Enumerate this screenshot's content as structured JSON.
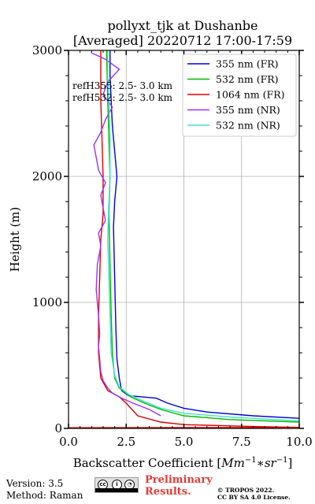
{
  "chart_data": {
    "type": "line",
    "title_lines": [
      "pollyxt_tjk at Dushanbe",
      "[Averaged] 20220712 17:00-17:59"
    ],
    "xlabel_prefix": "Backscatter Coefficient [",
    "xlabel_math": "Mm",
    "xlabel_sup1": "−1",
    "xlabel_mid": "∗sr",
    "xlabel_sup2": "−1",
    "xlabel_suffix": "]",
    "ylabel": "Height (m)",
    "xlim": [
      0,
      10
    ],
    "ylim": [
      0,
      3000
    ],
    "xticks": [
      0,
      2.5,
      5,
      7.5,
      10
    ],
    "xtick_labels": [
      "0.0",
      "2.5",
      "5.0",
      "7.5",
      "10.0"
    ],
    "yticks": [
      0,
      1000,
      2000,
      3000
    ],
    "ytick_labels": [
      "0",
      "1000",
      "2000",
      "3000"
    ],
    "grid": true,
    "legend_position": "top-right",
    "annotations": [
      "refH355:  2.5- 3.0 km",
      "refH532:  2.5- 3.0 km"
    ],
    "series": [
      {
        "name": "355 nm (FR)",
        "color": "#0000dd",
        "points": [
          [
            10,
            80
          ],
          [
            8,
            100
          ],
          [
            6,
            130
          ],
          [
            5,
            160
          ],
          [
            4.3,
            200
          ],
          [
            3.8,
            240
          ],
          [
            2.6,
            260
          ],
          [
            2.3,
            300
          ],
          [
            2.2,
            400
          ],
          [
            2.1,
            550
          ],
          [
            2.05,
            800
          ],
          [
            2.0,
            1200
          ],
          [
            1.95,
            1600
          ],
          [
            2.0,
            1800
          ],
          [
            2.1,
            2000
          ],
          [
            2.0,
            2200
          ],
          [
            1.9,
            2400
          ],
          [
            1.85,
            2600
          ],
          [
            1.8,
            2800
          ],
          [
            1.8,
            3000
          ]
        ]
      },
      {
        "name": "532 nm (FR)",
        "color": "#00bb00",
        "points": [
          [
            10,
            50
          ],
          [
            7,
            70
          ],
          [
            5,
            100
          ],
          [
            4,
            150
          ],
          [
            3.3,
            200
          ],
          [
            2.7,
            250
          ],
          [
            2.2,
            320
          ],
          [
            2.0,
            400
          ],
          [
            1.9,
            600
          ],
          [
            1.85,
            900
          ],
          [
            1.8,
            1300
          ],
          [
            1.75,
            1700
          ],
          [
            1.8,
            2000
          ],
          [
            1.75,
            2300
          ],
          [
            1.7,
            2600
          ],
          [
            1.65,
            3000
          ]
        ]
      },
      {
        "name": "1064 nm (FR)",
        "color": "#dd0000",
        "points": [
          [
            0,
            5
          ],
          [
            10,
            8
          ],
          [
            8,
            15
          ],
          [
            5,
            30
          ],
          [
            4,
            50
          ],
          [
            3,
            100
          ],
          [
            2.5,
            200
          ],
          [
            2.2,
            250
          ],
          [
            1.7,
            300
          ],
          [
            1.4,
            400
          ],
          [
            1.3,
            600
          ],
          [
            1.3,
            900
          ],
          [
            1.35,
            1200
          ],
          [
            1.4,
            1500
          ],
          [
            1.5,
            1700
          ],
          [
            1.5,
            2000
          ],
          [
            1.45,
            2300
          ],
          [
            1.4,
            2600
          ],
          [
            1.4,
            3000
          ]
        ]
      },
      {
        "name": "355 nm (NR)",
        "color": "#9b30ff",
        "points": [
          [
            4.0,
            100
          ],
          [
            3.5,
            150
          ],
          [
            2.8,
            200
          ],
          [
            2.3,
            240
          ],
          [
            1.9,
            280
          ],
          [
            1.7,
            320
          ],
          [
            1.5,
            380
          ],
          [
            1.4,
            450
          ],
          [
            1.35,
            550
          ],
          [
            1.3,
            650
          ],
          [
            1.35,
            750
          ],
          [
            1.3,
            900
          ],
          [
            1.2,
            1100
          ],
          [
            1.25,
            1300
          ],
          [
            1.4,
            1450
          ],
          [
            1.3,
            1550
          ],
          [
            1.6,
            1650
          ],
          [
            1.5,
            1750
          ],
          [
            1.4,
            1850
          ],
          [
            1.6,
            1950
          ],
          [
            1.3,
            2050
          ],
          [
            1.2,
            2150
          ],
          [
            1.1,
            2250
          ],
          [
            1.4,
            2350
          ],
          [
            1.6,
            2450
          ],
          [
            1.9,
            2550
          ],
          [
            1.5,
            2650
          ],
          [
            1.7,
            2750
          ],
          [
            2.2,
            2850
          ],
          [
            1.6,
            2930
          ],
          [
            1.0,
            2980
          ]
        ]
      },
      {
        "name": "532 nm (NR)",
        "color": "#40e0d0",
        "points": [
          [
            10,
            60
          ],
          [
            7,
            90
          ],
          [
            5,
            120
          ],
          [
            4,
            160
          ],
          [
            3.2,
            220
          ],
          [
            2.6,
            270
          ],
          [
            2.2,
            330
          ],
          [
            2.0,
            420
          ],
          [
            1.85,
            600
          ],
          [
            1.8,
            900
          ],
          [
            1.75,
            1200
          ],
          [
            1.7,
            1500
          ],
          [
            1.75,
            1800
          ],
          [
            1.8,
            2000
          ],
          [
            1.8,
            2300
          ],
          [
            1.75,
            2600
          ],
          [
            1.7,
            2800
          ],
          [
            1.7,
            3000
          ]
        ]
      }
    ]
  },
  "footer": {
    "version": "Version: 3.5",
    "method": "Method: Raman",
    "preliminary_line1": "Preliminary",
    "preliminary_line2": "Results.",
    "tropos_line1": "© TROPOS 2022.",
    "tropos_line2": "CC BY SA 4.0 License."
  }
}
